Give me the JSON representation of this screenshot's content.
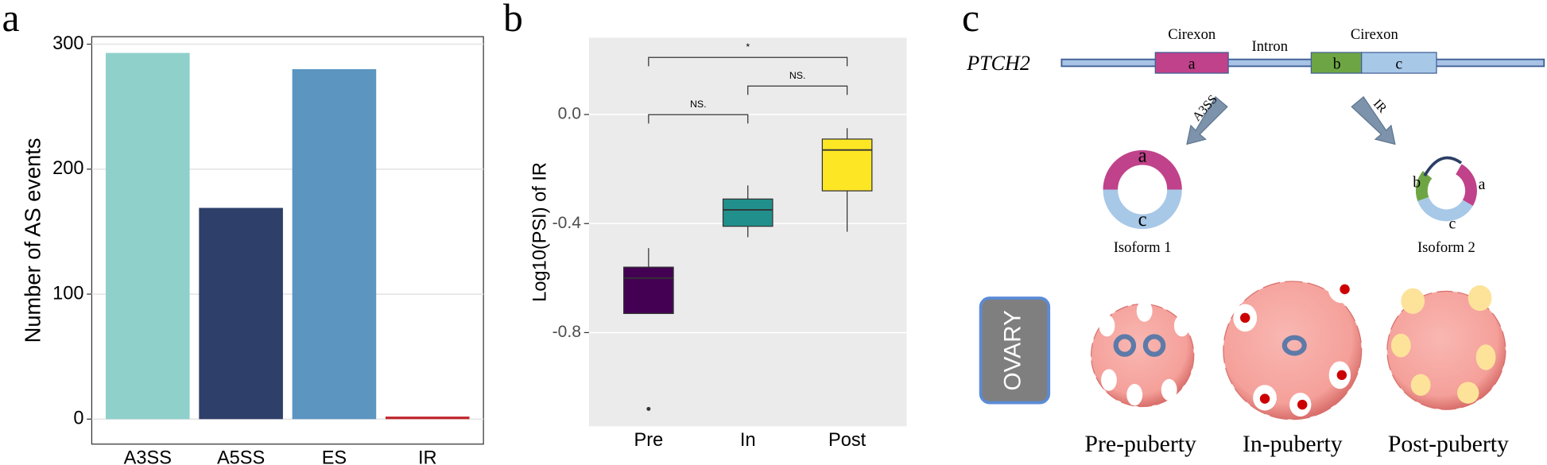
{
  "chart_data": [
    {
      "type": "bar",
      "panel_label": "a",
      "y_label": "Number of AS events",
      "categories": [
        "A3SS",
        "A5SS",
        "ES",
        "IR"
      ],
      "values": [
        293,
        169,
        280,
        2
      ],
      "colors": [
        "#8fd0cb",
        "#2e3f69",
        "#5b95c0",
        "#c0252c"
      ],
      "ylim": [
        -20,
        306
      ],
      "yticks": [
        0,
        100,
        200,
        300
      ],
      "grid": true
    },
    {
      "type": "box",
      "panel_label": "b",
      "y_label": "Log10(PSI) of IR",
      "categories": [
        "Pre",
        "In",
        "Post"
      ],
      "boxes": [
        {
          "min": -0.73,
          "q1": -0.73,
          "median": -0.6,
          "q3": -0.56,
          "max": -0.49,
          "outliers": [
            -1.08
          ]
        },
        {
          "min": -0.45,
          "q1": -0.41,
          "median": -0.35,
          "q3": -0.31,
          "max": -0.26,
          "outliers": []
        },
        {
          "min": -0.43,
          "q1": -0.28,
          "median": -0.13,
          "q3": -0.09,
          "max": -0.05,
          "outliers": []
        }
      ],
      "colors": [
        "#440154",
        "#21908c",
        "#fde725"
      ],
      "ylim": [
        -1.144,
        0.282
      ],
      "yticks": [
        {
          "value": 0,
          "label": "0.0"
        },
        -0.4,
        -0.8
      ],
      "grid": true,
      "comparisons": [
        {
          "from": 0,
          "to": 1,
          "label": "NS."
        },
        {
          "from": 1,
          "to": 2,
          "label": "NS."
        },
        {
          "from": 0,
          "to": 2,
          "label": "*"
        }
      ]
    }
  ],
  "diagram": {
    "panel_label": "c",
    "gene": "PTCH2",
    "exon_labels": [
      "Cirexon",
      "Cirexon"
    ],
    "intron_label": "Intron",
    "segments": [
      "a",
      "b",
      "c"
    ],
    "events": [
      "A3SS",
      "IR"
    ],
    "isoforms": [
      {
        "name": "Isoform 1",
        "segments": [
          "a",
          "c"
        ]
      },
      {
        "name": "Isoform 2",
        "segments": [
          "b",
          "c",
          "a"
        ]
      }
    ],
    "organ": "OVARY",
    "stages": [
      "Pre-puberty",
      "In-puberty",
      "Post-puberty"
    ]
  }
}
